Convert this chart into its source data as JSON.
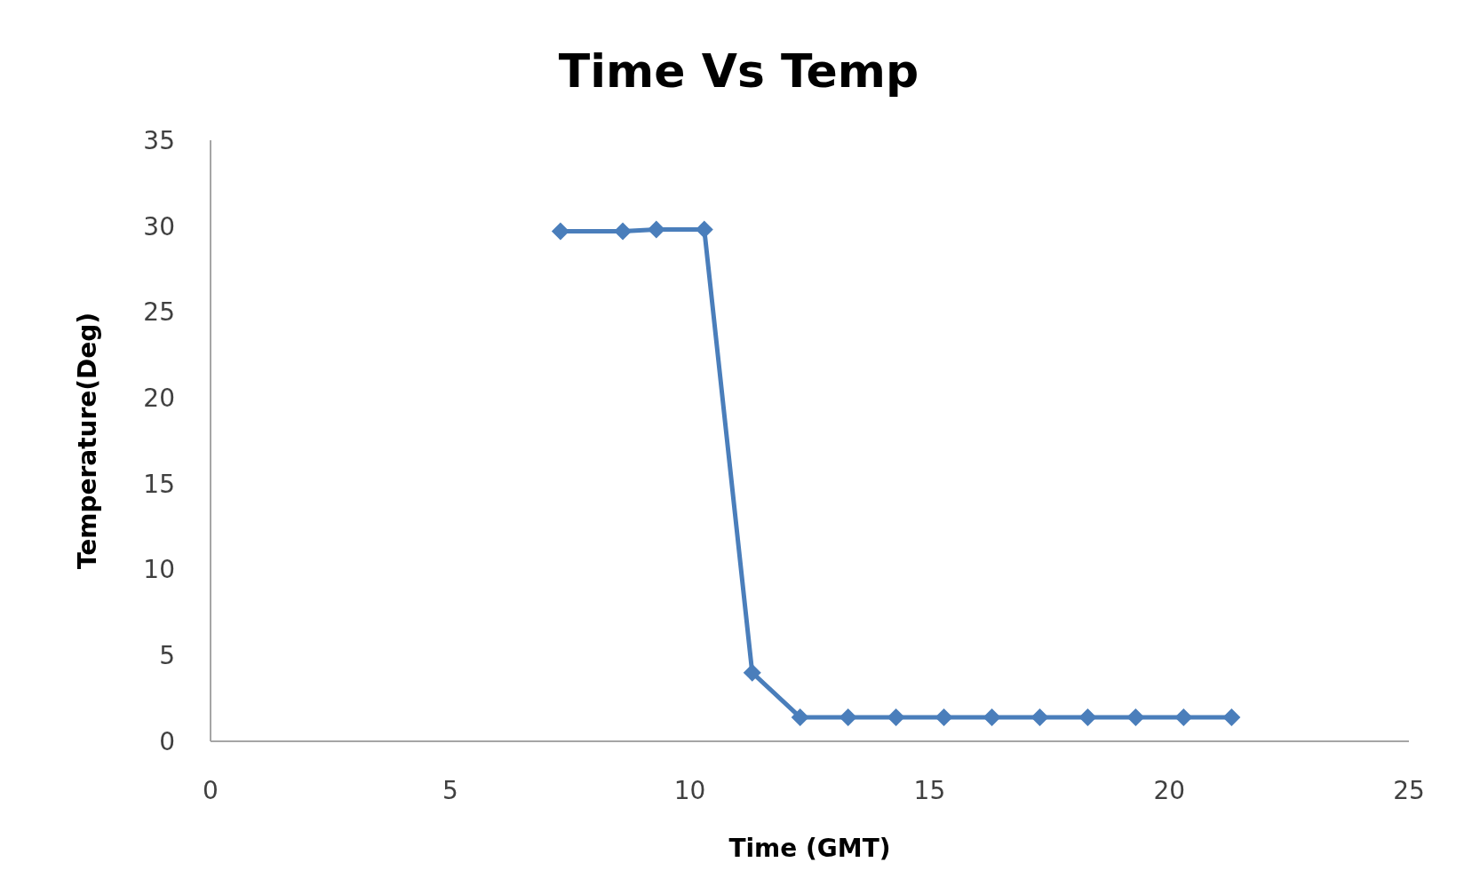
{
  "chart_data": {
    "type": "line",
    "title": "Time Vs Temp",
    "xlabel": "Time (GMT)",
    "ylabel": "Temperature(Deg)",
    "x": [
      7.3,
      8.6,
      9.3,
      10.3,
      11.3,
      12.3,
      13.3,
      14.3,
      15.3,
      16.3,
      17.3,
      18.3,
      19.3,
      20.3,
      21.3
    ],
    "series": [
      {
        "color": "#4a7ebb",
        "values": [
          29.7,
          29.7,
          29.8,
          29.8,
          4,
          1.4,
          1.4,
          1.4,
          1.4,
          1.4,
          1.4,
          1.4,
          1.4,
          1.4,
          1.4
        ]
      }
    ],
    "xlim": [
      0,
      25
    ],
    "xticks": [
      0,
      5,
      10,
      15,
      20,
      25
    ],
    "ylim": [
      0,
      35
    ],
    "yticks": [
      0,
      5,
      10,
      15,
      20,
      25,
      30,
      35
    ],
    "marker": "diamond",
    "line_style": "solid"
  }
}
